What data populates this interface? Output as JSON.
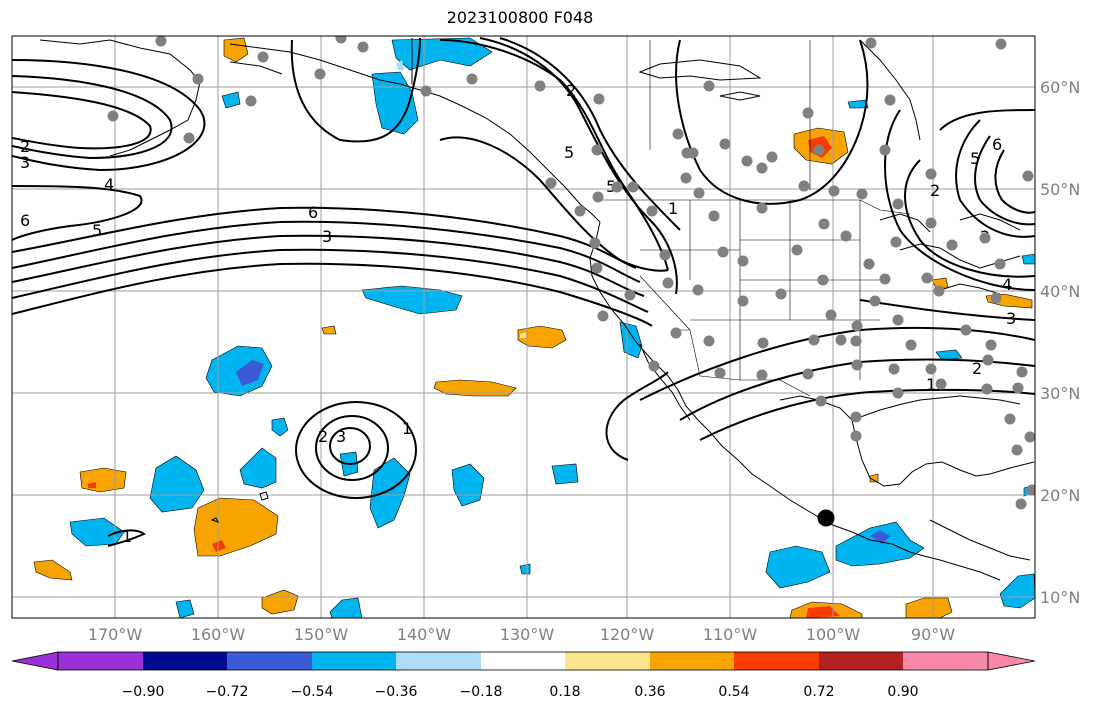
{
  "title": "2023100800 F048",
  "colors": {
    "grid": "#9e9e9e",
    "coast": "#000000",
    "contour": "#000000",
    "station": "#808080",
    "tick_label": "#808080"
  },
  "longitude_labels": [
    "170°W",
    "160°W",
    "150°W",
    "140°W",
    "130°W",
    "120°W",
    "110°W",
    "100°W",
    "90°W"
  ],
  "latitude_labels": [
    "60°N",
    "50°N",
    "40°N",
    "30°N",
    "20°N",
    "10°N"
  ],
  "contour_labels": [
    "2",
    "3",
    "4",
    "5",
    "6",
    "6",
    "5",
    "3",
    "2",
    "5",
    "1",
    "2",
    "3",
    "1",
    "1",
    "2",
    "5",
    "6",
    "4",
    "3",
    "2",
    "1",
    "2"
  ],
  "colorbar": {
    "swatches": [
      "#9b30d9",
      "#000a8c",
      "#3b5bd6",
      "#00b4f0",
      "#afdcf8",
      "#ffffff",
      "#fbe58c",
      "#f8a400",
      "#f83c00",
      "#b22222",
      "#f788a8"
    ],
    "tick_labels": [
      "−0.90",
      "−0.72",
      "−0.54",
      "−0.36",
      "−0.18",
      "0.18",
      "0.36",
      "0.54",
      "0.72",
      "0.90"
    ]
  }
}
